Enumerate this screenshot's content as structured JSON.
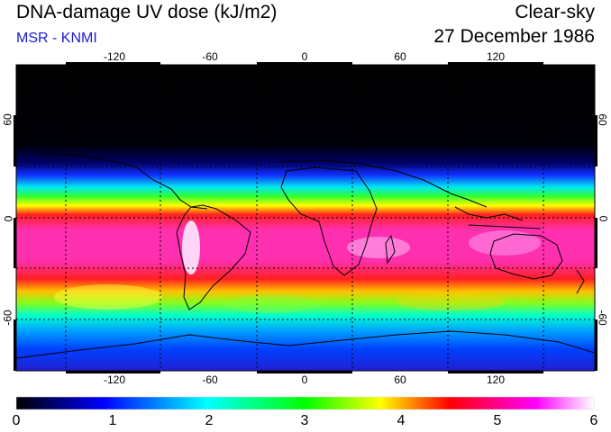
{
  "header": {
    "title": "DNA-damage UV dose (kJ/m2)",
    "subtitle": "MSR - KNMI",
    "condition": "Clear-sky",
    "date": "27 December 1986"
  },
  "map": {
    "lon_ticks": [
      "-120",
      "-60",
      "0",
      "60",
      "120"
    ],
    "lat_ticks": [
      "60",
      "0",
      "-60"
    ],
    "lon_range": [
      -180,
      180
    ],
    "lat_range": [
      -90,
      90
    ],
    "gridlines": true,
    "projection": "equirectangular"
  },
  "colorbar": {
    "labels": [
      "0",
      "1",
      "2",
      "3",
      "4",
      "5",
      "6"
    ],
    "range": [
      0,
      6
    ],
    "colors": [
      "#000000",
      "#0000ff",
      "#00ffff",
      "#00ff00",
      "#ffff00",
      "#ff0000",
      "#ff00ff",
      "#ffffff"
    ]
  },
  "colors": {
    "subtitle": "#1a1ad0",
    "frame": "#000000"
  }
}
